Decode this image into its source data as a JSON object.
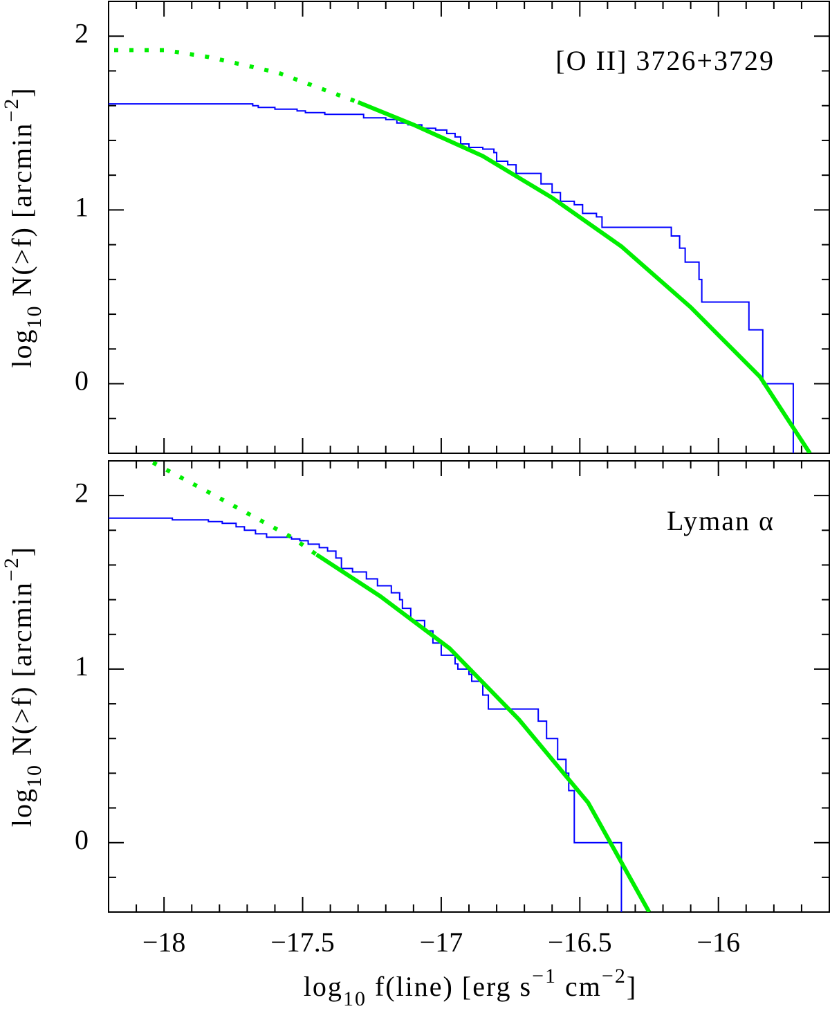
{
  "chart_data": [
    {
      "type": "line",
      "annotation": "[O II]  3726+3729",
      "ylabel": [
        "log",
        "10",
        "  N(>f)  [arcmin",
        "−2",
        "]"
      ],
      "xlim": [
        -18.2,
        -15.6
      ],
      "ylim": [
        -0.4,
        2.2
      ],
      "xticks": [
        -18,
        -17.5,
        -17,
        -16.5,
        -16
      ],
      "xminorticks": [
        -18.1,
        -17.9,
        -17.8,
        -17.7,
        -17.6,
        -17.4,
        -17.3,
        -17.2,
        -17.1,
        -16.9,
        -16.8,
        -16.7,
        -16.6,
        -16.4,
        -16.3,
        -16.2,
        -16.1,
        -15.9,
        -15.8,
        -15.7
      ],
      "yticks": [
        0,
        1,
        2
      ],
      "yminorticks": [
        -0.2,
        0.2,
        0.4,
        0.6,
        0.8,
        1.2,
        1.4,
        1.6,
        1.8
      ],
      "series": [
        {
          "style": "step",
          "color": "#0000ff",
          "x": [
            -18.2,
            -17.68,
            -17.66,
            -17.6,
            -17.52,
            -17.49,
            -17.42,
            -17.28,
            -17.27,
            -17.2,
            -17.16,
            -17.12,
            -17.07,
            -17.02,
            -16.98,
            -16.95,
            -16.93,
            -16.9,
            -16.85,
            -16.81,
            -16.8,
            -16.76,
            -16.73,
            -16.64,
            -16.6,
            -16.57,
            -16.52,
            -16.49,
            -16.44,
            -16.42,
            -16.17,
            -16.14,
            -16.12,
            -16.07,
            -16.06,
            -15.89,
            -15.84,
            -15.73
          ],
          "values": [
            1.61,
            1.6,
            1.59,
            1.58,
            1.57,
            1.56,
            1.55,
            1.53,
            1.53,
            1.52,
            1.5,
            1.49,
            1.47,
            1.46,
            1.44,
            1.42,
            1.38,
            1.36,
            1.35,
            1.33,
            1.28,
            1.26,
            1.21,
            1.15,
            1.1,
            1.05,
            1.03,
            0.98,
            0.96,
            0.9,
            0.85,
            0.78,
            0.7,
            0.6,
            0.47,
            0.31,
            0,
            -0.4
          ]
        },
        {
          "style": "solid",
          "color": "#00ee00",
          "x": [
            -17.3,
            -17.1,
            -16.85,
            -16.6,
            -16.35,
            -16.1,
            -15.85,
            -15.67
          ],
          "values": [
            1.62,
            1.49,
            1.31,
            1.07,
            0.79,
            0.44,
            0.04,
            -0.4
          ]
        },
        {
          "style": "dotted",
          "color": "#00ee00",
          "x": [
            -18.18,
            -18.0,
            -17.84,
            -17.59,
            -17.3
          ],
          "values": [
            1.92,
            1.92,
            1.88,
            1.79,
            1.62
          ]
        }
      ]
    },
    {
      "type": "line",
      "annotation": "Lyman α",
      "ylabel": [
        "log",
        "10",
        "  N(>f)  [arcmin",
        "−2",
        "]"
      ],
      "xlabel": [
        "log",
        "10",
        " f(line)  [erg  s",
        "−1",
        "  cm",
        "−2",
        "]"
      ],
      "xlim": [
        -18.2,
        -15.6
      ],
      "ylim": [
        -0.4,
        2.2
      ],
      "xticks": [
        {
          "value": -18,
          "label": "−18"
        },
        {
          "value": -17.5,
          "label": "−17.5"
        },
        {
          "value": -17,
          "label": "−17"
        },
        {
          "value": -16.5,
          "label": "−16.5"
        },
        {
          "value": -16,
          "label": "−16"
        }
      ],
      "xminorticks": [
        -18.1,
        -17.9,
        -17.8,
        -17.7,
        -17.6,
        -17.4,
        -17.3,
        -17.2,
        -17.1,
        -16.9,
        -16.8,
        -16.7,
        -16.6,
        -16.4,
        -16.3,
        -16.2,
        -16.1,
        -15.9,
        -15.8,
        -15.7
      ],
      "yticks": [
        0,
        1,
        2
      ],
      "yminorticks": [
        -0.2,
        0.2,
        0.4,
        0.6,
        0.8,
        1.2,
        1.4,
        1.6,
        1.8
      ],
      "series": [
        {
          "style": "step",
          "color": "#0000ff",
          "x": [
            -18.2,
            -17.97,
            -17.84,
            -17.79,
            -17.74,
            -17.71,
            -17.67,
            -17.63,
            -17.54,
            -17.51,
            -17.48,
            -17.44,
            -17.41,
            -17.38,
            -17.36,
            -17.32,
            -17.27,
            -17.23,
            -17.18,
            -17.15,
            -17.14,
            -17.11,
            -17.06,
            -17.03,
            -17.0,
            -16.95,
            -16.94,
            -16.9,
            -16.89,
            -16.85,
            -16.83,
            -16.65,
            -16.62,
            -16.58,
            -16.55,
            -16.54,
            -16.52,
            -16.35
          ],
          "values": [
            1.87,
            1.86,
            1.85,
            1.84,
            1.82,
            1.8,
            1.78,
            1.76,
            1.75,
            1.74,
            1.72,
            1.7,
            1.68,
            1.64,
            1.58,
            1.56,
            1.52,
            1.48,
            1.44,
            1.4,
            1.35,
            1.28,
            1.22,
            1.15,
            1.08,
            1.03,
            1.0,
            0.97,
            0.93,
            0.85,
            0.77,
            0.7,
            0.6,
            0.48,
            0.4,
            0.3,
            0,
            -0.4
          ]
        },
        {
          "style": "solid",
          "color": "#00ee00",
          "x": [
            -17.45,
            -17.22,
            -16.97,
            -16.72,
            -16.47,
            -16.25
          ],
          "values": [
            1.66,
            1.42,
            1.12,
            0.71,
            0.23,
            -0.4
          ]
        },
        {
          "style": "dotted",
          "color": "#00ee00",
          "x": [
            -18.04,
            -17.84,
            -17.54,
            -17.45
          ],
          "values": [
            2.19,
            2.02,
            1.76,
            1.66
          ]
        }
      ]
    }
  ]
}
